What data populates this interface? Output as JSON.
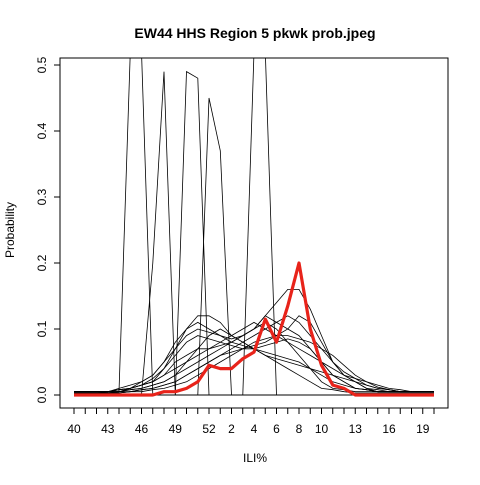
{
  "chart_data": {
    "type": "line",
    "title": "EW44 HHS Region 5 pkwk prob.jpeg",
    "xlabel": "ILI%",
    "ylabel": "Probability",
    "weeks": [
      "40",
      "41",
      "42",
      "43",
      "44",
      "45",
      "46",
      "47",
      "48",
      "49",
      "50",
      "51",
      "52",
      "1",
      "2",
      "3",
      "4",
      "5",
      "6",
      "7",
      "8",
      "9",
      "10",
      "11",
      "12",
      "13",
      "14",
      "15",
      "16",
      "17",
      "18",
      "19",
      "20"
    ],
    "x_tick_labels": [
      "40",
      "43",
      "46",
      "49",
      "52",
      "2",
      "4",
      "6",
      "8",
      "10",
      "13",
      "16",
      "19"
    ],
    "ylim": [
      0,
      0.5
    ],
    "y_ticks": [
      0.0,
      0.1,
      0.2,
      0.3,
      0.4,
      0.5
    ],
    "y_tick_labels": [
      "0.0",
      "0.1",
      "0.2",
      "0.3",
      "0.4",
      "0.5"
    ],
    "highlight_color": "#e8231a",
    "line_color": "#000000",
    "highlight": {
      "values": [
        0,
        0,
        0,
        0,
        0,
        0,
        0,
        0,
        0.005,
        0.005,
        0.01,
        0.02,
        0.045,
        0.04,
        0.04,
        0.055,
        0.065,
        0.115,
        0.08,
        0.135,
        0.2,
        0.1,
        0.045,
        0.015,
        0.01,
        0,
        0,
        0,
        0,
        0,
        0,
        0,
        0
      ]
    },
    "series": [
      {
        "values": [
          0.005,
          0.005,
          0.005,
          0.005,
          0.005,
          0.52,
          0.52,
          0,
          0,
          0,
          0,
          0,
          0,
          0,
          0,
          0,
          0,
          0,
          0,
          0,
          0,
          0,
          0,
          0,
          0,
          0,
          0,
          0,
          0,
          0,
          0,
          0,
          0
        ]
      },
      {
        "values": [
          0,
          0,
          0,
          0,
          0,
          0,
          0,
          0.2,
          0.49,
          0,
          0,
          0,
          0,
          0,
          0,
          0,
          0,
          0,
          0,
          0,
          0,
          0,
          0,
          0,
          0,
          0,
          0,
          0,
          0,
          0,
          0,
          0,
          0
        ]
      },
      {
        "values": [
          0,
          0,
          0,
          0,
          0,
          0,
          0,
          0,
          0,
          0,
          0.49,
          0.48,
          0,
          0,
          0,
          0,
          0,
          0,
          0,
          0,
          0,
          0,
          0,
          0,
          0,
          0,
          0,
          0,
          0,
          0,
          0,
          0,
          0
        ]
      },
      {
        "values": [
          0,
          0,
          0,
          0,
          0,
          0,
          0,
          0,
          0,
          0,
          0,
          0,
          0.45,
          0.37,
          0,
          0,
          0,
          0,
          0,
          0,
          0,
          0,
          0,
          0,
          0,
          0,
          0,
          0,
          0,
          0,
          0,
          0,
          0
        ]
      },
      {
        "values": [
          0,
          0,
          0,
          0,
          0,
          0,
          0,
          0,
          0,
          0,
          0,
          0,
          0,
          0,
          0,
          0,
          0.52,
          0.52,
          0,
          0,
          0,
          0,
          0,
          0,
          0,
          0,
          0,
          0,
          0,
          0,
          0,
          0,
          0
        ]
      },
      {
        "values": [
          0.003,
          0.003,
          0.003,
          0.005,
          0.008,
          0.01,
          0.015,
          0.02,
          0.04,
          0.07,
          0.1,
          0.12,
          0.12,
          0.11,
          0.09,
          0.08,
          0.07,
          0.06,
          0.05,
          0.04,
          0.03,
          0.02,
          0.01,
          0.008,
          0.005,
          0.003,
          0.003,
          0.003,
          0.003,
          0.003,
          0.003,
          0.003,
          0.003
        ]
      },
      {
        "values": [
          0.005,
          0.005,
          0.005,
          0.005,
          0.01,
          0.015,
          0.02,
          0.03,
          0.05,
          0.07,
          0.09,
          0.1,
          0.095,
          0.09,
          0.085,
          0.09,
          0.1,
          0.11,
          0.1,
          0.08,
          0.06,
          0.04,
          0.02,
          0.01,
          0.008,
          0.005,
          0.005,
          0.005,
          0.005,
          0.005,
          0.005,
          0.005,
          0.005
        ]
      },
      {
        "values": [
          0.005,
          0.005,
          0.005,
          0.005,
          0.005,
          0.01,
          0.015,
          0.02,
          0.03,
          0.05,
          0.06,
          0.07,
          0.07,
          0.075,
          0.08,
          0.09,
          0.1,
          0.12,
          0.11,
          0.1,
          0.09,
          0.07,
          0.05,
          0.03,
          0.02,
          0.01,
          0.008,
          0.005,
          0.005,
          0.005,
          0.005,
          0.005,
          0.005
        ]
      },
      {
        "values": [
          0.003,
          0.003,
          0.003,
          0.003,
          0.005,
          0.008,
          0.01,
          0.015,
          0.02,
          0.03,
          0.04,
          0.05,
          0.06,
          0.07,
          0.08,
          0.09,
          0.1,
          0.12,
          0.14,
          0.16,
          0.16,
          0.13,
          0.09,
          0.05,
          0.03,
          0.02,
          0.01,
          0.005,
          0.005,
          0.005,
          0.005,
          0.005,
          0.005
        ]
      },
      {
        "values": [
          0.005,
          0.005,
          0.005,
          0.005,
          0.005,
          0.01,
          0.015,
          0.02,
          0.03,
          0.04,
          0.05,
          0.06,
          0.07,
          0.08,
          0.09,
          0.1,
          0.11,
          0.1,
          0.09,
          0.08,
          0.07,
          0.06,
          0.05,
          0.04,
          0.03,
          0.025,
          0.02,
          0.015,
          0.01,
          0.008,
          0.005,
          0.005,
          0.005
        ]
      },
      {
        "values": [
          0.005,
          0.005,
          0.005,
          0.005,
          0.008,
          0.01,
          0.015,
          0.025,
          0.04,
          0.06,
          0.08,
          0.09,
          0.085,
          0.08,
          0.075,
          0.07,
          0.07,
          0.075,
          0.08,
          0.085,
          0.08,
          0.07,
          0.05,
          0.03,
          0.02,
          0.01,
          0.008,
          0.005,
          0.005,
          0.005,
          0.005,
          0.005,
          0.005
        ]
      },
      {
        "values": [
          0.003,
          0.003,
          0.003,
          0.003,
          0.003,
          0.005,
          0.008,
          0.01,
          0.015,
          0.02,
          0.03,
          0.04,
          0.05,
          0.06,
          0.07,
          0.08,
          0.09,
          0.1,
          0.11,
          0.12,
          0.11,
          0.09,
          0.07,
          0.05,
          0.035,
          0.025,
          0.015,
          0.01,
          0.008,
          0.005,
          0.005,
          0.005,
          0.005
        ]
      },
      {
        "values": [
          0.005,
          0.005,
          0.005,
          0.005,
          0.008,
          0.01,
          0.02,
          0.03,
          0.05,
          0.08,
          0.1,
          0.11,
          0.1,
          0.09,
          0.08,
          0.075,
          0.07,
          0.065,
          0.06,
          0.055,
          0.05,
          0.04,
          0.03,
          0.02,
          0.015,
          0.01,
          0.008,
          0.005,
          0.005,
          0.005,
          0.005,
          0.005,
          0.005
        ]
      },
      {
        "values": [
          0.003,
          0.003,
          0.003,
          0.003,
          0.005,
          0.005,
          0.008,
          0.01,
          0.015,
          0.02,
          0.03,
          0.04,
          0.05,
          0.06,
          0.065,
          0.07,
          0.075,
          0.08,
          0.09,
          0.1,
          0.12,
          0.11,
          0.08,
          0.05,
          0.03,
          0.02,
          0.01,
          0.008,
          0.005,
          0.005,
          0.005,
          0.005,
          0.005
        ]
      },
      {
        "values": [
          0.005,
          0.005,
          0.005,
          0.005,
          0.005,
          0.008,
          0.01,
          0.015,
          0.02,
          0.03,
          0.05,
          0.07,
          0.09,
          0.1,
          0.09,
          0.08,
          0.07,
          0.06,
          0.055,
          0.05,
          0.045,
          0.04,
          0.035,
          0.03,
          0.025,
          0.02,
          0.015,
          0.01,
          0.008,
          0.005,
          0.005,
          0.005,
          0.005
        ]
      },
      {
        "values": [
          0.003,
          0.003,
          0.003,
          0.003,
          0.003,
          0.005,
          0.005,
          0.008,
          0.01,
          0.015,
          0.02,
          0.03,
          0.04,
          0.05,
          0.06,
          0.07,
          0.08,
          0.085,
          0.09,
          0.09,
          0.085,
          0.08,
          0.07,
          0.06,
          0.045,
          0.03,
          0.02,
          0.012,
          0.008,
          0.005,
          0.005,
          0.005,
          0.005
        ]
      }
    ]
  }
}
